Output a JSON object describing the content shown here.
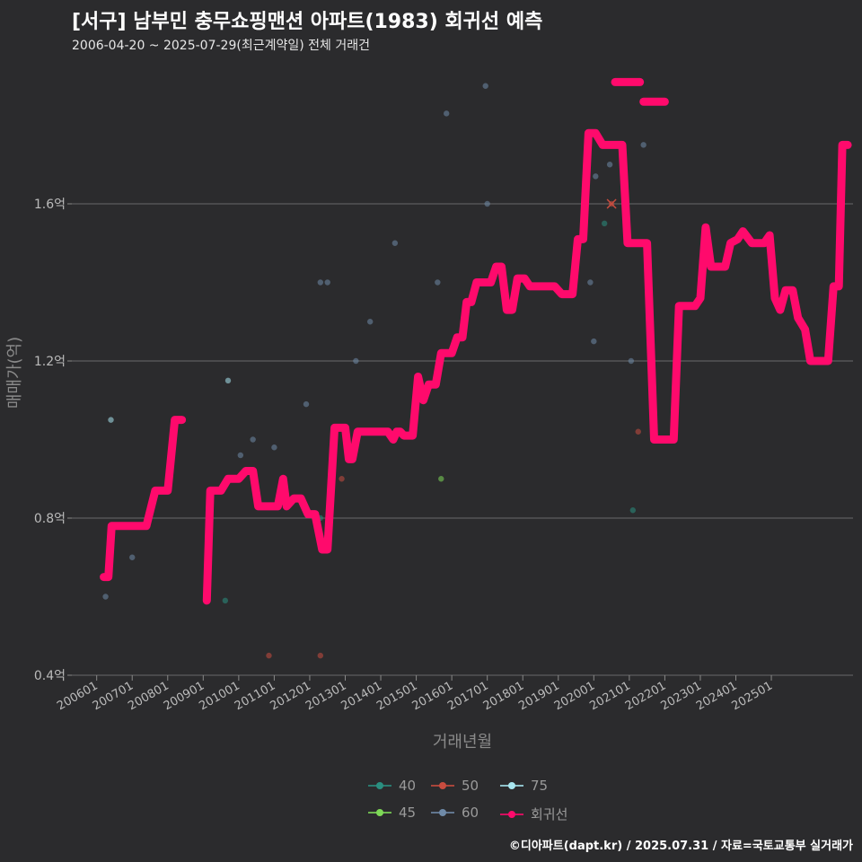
{
  "header": {
    "title": "[서구] 남부민 충무쇼핑맨션 아파트(1983) 회귀선 예측",
    "subtitle": "2006-04-20 ~ 2025-07-29(최근계약일) 전체 거래건"
  },
  "footer": {
    "credit": "©디아파트(dapt.kr) / 2025.07.31 / 자료=국토교통부 실거래가"
  },
  "legend": [
    {
      "key": "40",
      "label": "40",
      "color": "#2a8f80"
    },
    {
      "key": "50",
      "label": "50",
      "color": "#c94c3f"
    },
    {
      "key": "75",
      "label": "75",
      "color": "#a8e6f0"
    },
    {
      "key": "45",
      "label": "45",
      "color": "#7ed957"
    },
    {
      "key": "60",
      "label": "60",
      "color": "#6f8aa8"
    },
    {
      "key": "reg",
      "label": "회귀선",
      "color": "#ff0a6c"
    }
  ],
  "chart_data": {
    "type": "scatter",
    "title": "[서구] 남부민 충무쇼핑맨션 아파트(1983) 회귀선 예측",
    "xlabel": "거래년월",
    "ylabel": "매매가(억)",
    "xlim": [
      2005.3,
      2027.3
    ],
    "ylim": [
      0.4,
      2.0
    ],
    "y_ticks": [
      0.4,
      0.8,
      1.2,
      1.6
    ],
    "y_tick_labels": [
      "0.4억",
      "0.8억",
      "1.2억",
      "1.6억"
    ],
    "x_ticks": [
      2006,
      2007,
      2008,
      2009,
      2010,
      2011,
      2012,
      2013,
      2014,
      2015,
      2016,
      2017,
      2018,
      2019,
      2020,
      2021,
      2022,
      2023,
      2024,
      2025
    ],
    "x_tick_labels": [
      "200601",
      "200701",
      "200801",
      "200901",
      "201001",
      "201101",
      "201201",
      "201301",
      "201401",
      "201501",
      "201601",
      "201701",
      "201801",
      "201901",
      "202001",
      "202101",
      "202201",
      "202301",
      "202401",
      "202501"
    ],
    "series": [
      {
        "name": "40",
        "color": "#2a8f80",
        "points": [
          [
            2009.62,
            0.59
          ],
          [
            2012.3,
            0.8
          ],
          [
            2020.3,
            1.55
          ],
          [
            2021.1,
            0.82
          ]
        ]
      },
      {
        "name": "45",
        "color": "#7ed957",
        "points": [
          [
            2015.7,
            0.9
          ]
        ]
      },
      {
        "name": "50",
        "color": "#c94c3f",
        "points": [
          [
            2010.85,
            0.45
          ],
          [
            2012.3,
            0.45
          ],
          [
            2012.9,
            0.9
          ],
          [
            2020.5,
            1.6
          ],
          [
            2021.25,
            1.02
          ]
        ]
      },
      {
        "name": "60",
        "color": "#6f8aa8",
        "points": [
          [
            2006.25,
            0.6
          ],
          [
            2007.0,
            0.7
          ],
          [
            2010.05,
            0.96
          ],
          [
            2010.4,
            1.0
          ],
          [
            2011.0,
            0.98
          ],
          [
            2011.9,
            1.09
          ],
          [
            2012.3,
            1.4
          ],
          [
            2012.5,
            1.4
          ],
          [
            2013.3,
            1.2
          ],
          [
            2013.7,
            1.3
          ],
          [
            2014.4,
            1.5
          ],
          [
            2015.6,
            1.4
          ],
          [
            2015.85,
            1.83
          ],
          [
            2016.95,
            1.9
          ],
          [
            2017.0,
            1.6
          ],
          [
            2019.9,
            1.4
          ],
          [
            2020.0,
            1.25
          ],
          [
            2020.05,
            1.67
          ],
          [
            2020.45,
            1.7
          ],
          [
            2021.05,
            1.2
          ],
          [
            2021.4,
            1.75
          ]
        ]
      },
      {
        "name": "75",
        "color": "#a8e6f0",
        "points": [
          [
            2006.4,
            1.05
          ],
          [
            2009.7,
            1.15
          ]
        ]
      }
    ],
    "regression": {
      "name": "회귀선",
      "color": "#ff0a6c",
      "segments": [
        [
          [
            2006.2,
            0.65
          ],
          [
            2006.33,
            0.65
          ],
          [
            2006.42,
            0.78
          ],
          [
            2007.4,
            0.78
          ],
          [
            2007.65,
            0.87
          ],
          [
            2008.0,
            0.87
          ],
          [
            2008.2,
            1.05
          ],
          [
            2008.4,
            1.05
          ]
        ],
        [
          [
            2009.1,
            0.59
          ],
          [
            2009.2,
            0.87
          ],
          [
            2009.5,
            0.87
          ],
          [
            2009.7,
            0.9
          ],
          [
            2010.0,
            0.9
          ],
          [
            2010.2,
            0.92
          ],
          [
            2010.4,
            0.92
          ],
          [
            2010.55,
            0.83
          ],
          [
            2011.1,
            0.83
          ],
          [
            2011.25,
            0.9
          ],
          [
            2011.35,
            0.83
          ],
          [
            2011.55,
            0.85
          ],
          [
            2011.75,
            0.85
          ],
          [
            2011.95,
            0.81
          ],
          [
            2012.15,
            0.81
          ],
          [
            2012.35,
            0.72
          ],
          [
            2012.5,
            0.72
          ],
          [
            2012.7,
            1.03
          ],
          [
            2013.0,
            1.03
          ],
          [
            2013.1,
            0.95
          ],
          [
            2013.2,
            0.95
          ],
          [
            2013.35,
            1.02
          ],
          [
            2014.2,
            1.02
          ],
          [
            2014.35,
            1.0
          ],
          [
            2014.45,
            1.02
          ],
          [
            2014.55,
            1.02
          ],
          [
            2014.65,
            1.01
          ],
          [
            2014.9,
            1.01
          ],
          [
            2015.05,
            1.16
          ],
          [
            2015.2,
            1.1
          ],
          [
            2015.35,
            1.14
          ],
          [
            2015.55,
            1.14
          ],
          [
            2015.7,
            1.22
          ],
          [
            2016.0,
            1.22
          ],
          [
            2016.15,
            1.26
          ],
          [
            2016.3,
            1.26
          ],
          [
            2016.42,
            1.35
          ],
          [
            2016.55,
            1.35
          ],
          [
            2016.7,
            1.4
          ],
          [
            2017.1,
            1.4
          ],
          [
            2017.25,
            1.44
          ],
          [
            2017.4,
            1.44
          ],
          [
            2017.55,
            1.33
          ],
          [
            2017.7,
            1.33
          ],
          [
            2017.85,
            1.41
          ],
          [
            2018.05,
            1.41
          ],
          [
            2018.2,
            1.39
          ],
          [
            2018.9,
            1.39
          ],
          [
            2019.1,
            1.37
          ],
          [
            2019.4,
            1.37
          ],
          [
            2019.55,
            1.51
          ],
          [
            2019.7,
            1.51
          ],
          [
            2019.85,
            1.78
          ],
          [
            2020.05,
            1.78
          ],
          [
            2020.25,
            1.75
          ],
          [
            2020.8,
            1.75
          ],
          [
            2020.95,
            1.5
          ],
          [
            2021.3,
            1.5
          ],
          [
            2021.5,
            1.5
          ],
          [
            2021.7,
            1.0
          ],
          [
            2022.25,
            1.0
          ],
          [
            2022.4,
            1.34
          ],
          [
            2022.85,
            1.34
          ],
          [
            2023.0,
            1.36
          ],
          [
            2023.15,
            1.54
          ],
          [
            2023.3,
            1.44
          ],
          [
            2023.7,
            1.44
          ],
          [
            2023.85,
            1.5
          ],
          [
            2024.05,
            1.51
          ],
          [
            2024.2,
            1.53
          ],
          [
            2024.45,
            1.5
          ],
          [
            2024.8,
            1.5
          ],
          [
            2024.95,
            1.52
          ],
          [
            2025.1,
            1.36
          ],
          [
            2025.25,
            1.33
          ],
          [
            2025.4,
            1.38
          ],
          [
            2025.6,
            1.38
          ],
          [
            2025.75,
            1.31
          ],
          [
            2025.95,
            1.28
          ],
          [
            2026.1,
            1.2
          ],
          [
            2026.6,
            1.2
          ],
          [
            2026.75,
            1.39
          ],
          [
            2026.9,
            1.39
          ],
          [
            2027.0,
            1.75
          ],
          [
            2027.15,
            1.75
          ]
        ]
      ],
      "forecast_segments": [
        [
          [
            2020.6,
            1.91
          ],
          [
            2021.3,
            1.91
          ]
        ],
        [
          [
            2021.4,
            1.86
          ],
          [
            2022.0,
            1.86
          ]
        ]
      ]
    }
  }
}
